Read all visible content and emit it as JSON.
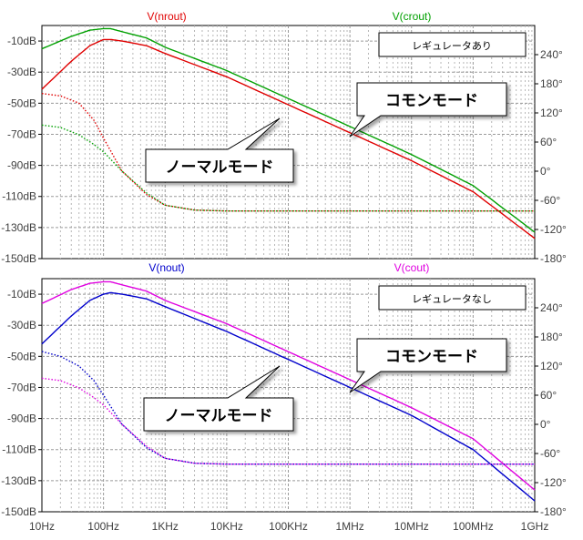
{
  "chart_data": [
    {
      "type": "line",
      "panel": "top",
      "title": "",
      "xlabel": "",
      "ylabel": "",
      "xscale": "log",
      "xlim": [
        10,
        1000000000
      ],
      "x_tick_labels": [
        "10Hz",
        "100Hz",
        "1KHz",
        "10KHz",
        "100KHz",
        "1MHz",
        "10MHz",
        "100MHz",
        "1GHz"
      ],
      "ylim_left": [
        -150,
        0
      ],
      "y_left_tick_values": [
        -10,
        -30,
        -50,
        -70,
        -90,
        -110,
        -130,
        -150
      ],
      "y_left_tick_labels": [
        "-10dB",
        "-30dB",
        "-50dB",
        "-70dB",
        "-90dB",
        "-110dB",
        "-130dB",
        "-150dB"
      ],
      "ylim_right": [
        -180,
        300
      ],
      "y_right_tick_values": [
        240,
        180,
        120,
        60,
        0,
        -60,
        -120,
        -180
      ],
      "y_right_tick_labels": [
        "240°",
        "180°",
        "120°",
        "60°",
        "0°",
        "-60°",
        "-120°",
        "-180°"
      ],
      "legend": [
        "V(nrout)",
        "V(crout)"
      ],
      "box_label": "レギュレータあり",
      "callouts": [
        "コモンモード",
        "ノーマルモード"
      ],
      "series": [
        {
          "name": "V(nrout) magnitude",
          "color": "#e00000",
          "style": "solid",
          "axis": "left",
          "x": [
            10,
            30,
            60,
            100,
            130,
            200,
            500,
            1000,
            10000.0,
            100000.0,
            1000000.0,
            10000000.0,
            100000000.0,
            1000000000.0
          ],
          "y": [
            -41,
            -23,
            -13,
            -9,
            -9,
            -10,
            -13,
            -18,
            -33,
            -51,
            -69,
            -87,
            -107,
            -137
          ]
        },
        {
          "name": "V(crout) magnitude",
          "color": "#00a000",
          "style": "solid",
          "axis": "left",
          "x": [
            10,
            30,
            60,
            100,
            130,
            200,
            500,
            1000,
            10000.0,
            100000.0,
            1000000.0,
            10000000.0,
            100000000.0,
            1000000000.0
          ],
          "y": [
            -15,
            -7,
            -3,
            -2,
            -2,
            -4,
            -8,
            -14,
            -29,
            -47,
            -65,
            -83,
            -103,
            -133
          ]
        },
        {
          "name": "V(nrout) phase",
          "color": "#e00000",
          "style": "dotted",
          "axis": "right",
          "x": [
            10,
            20,
            40,
            70,
            100,
            200,
            500,
            1000,
            3000,
            10000.0,
            100000.0,
            1000000000.0
          ],
          "y": [
            160,
            155,
            140,
            105,
            68,
            0,
            -48,
            -70,
            -80,
            -82,
            -82,
            -82
          ]
        },
        {
          "name": "V(crout) phase",
          "color": "#00a000",
          "style": "dotted",
          "axis": "right",
          "x": [
            10,
            20,
            40,
            70,
            100,
            200,
            500,
            1000,
            3000,
            10000.0,
            100000.0,
            1000000000.0
          ],
          "y": [
            95,
            90,
            75,
            55,
            40,
            0,
            -45,
            -70,
            -80,
            -82,
            -82,
            -82
          ]
        }
      ]
    },
    {
      "type": "line",
      "panel": "bottom",
      "title": "",
      "xlabel": "",
      "ylabel": "",
      "xscale": "log",
      "xlim": [
        10,
        1000000000
      ],
      "x_tick_labels": [
        "10Hz",
        "100Hz",
        "1KHz",
        "10KHz",
        "100KHz",
        "1MHz",
        "10MHz",
        "100MHz",
        "1GHz"
      ],
      "ylim_left": [
        -150,
        0
      ],
      "y_left_tick_values": [
        -10,
        -30,
        -50,
        -70,
        -90,
        -110,
        -130,
        -150
      ],
      "y_left_tick_labels": [
        "-10dB",
        "-30dB",
        "-50dB",
        "-70dB",
        "-90dB",
        "-110dB",
        "-130dB",
        "-150dB"
      ],
      "ylim_right": [
        -180,
        300
      ],
      "y_right_tick_values": [
        240,
        180,
        120,
        60,
        0,
        -60,
        -120,
        -180
      ],
      "y_right_tick_labels": [
        "240°",
        "180°",
        "120°",
        "60°",
        "0°",
        "-60°",
        "-120°",
        "-180°"
      ],
      "legend": [
        "V(nout)",
        "V(cout)"
      ],
      "box_label": "レギュレータなし",
      "callouts": [
        "コモンモード",
        "ノーマルモード"
      ],
      "series": [
        {
          "name": "V(nout) magnitude",
          "color": "#0000cc",
          "style": "solid",
          "axis": "left",
          "x": [
            10,
            30,
            60,
            100,
            130,
            200,
            500,
            1000,
            10000.0,
            100000.0,
            1000000.0,
            10000000.0,
            100000000.0,
            1000000000.0
          ],
          "y": [
            -42,
            -24,
            -14,
            -10,
            -9,
            -10,
            -13,
            -18,
            -34,
            -52,
            -70,
            -88,
            -110,
            -143
          ]
        },
        {
          "name": "V(cout) magnitude",
          "color": "#e000e0",
          "style": "solid",
          "axis": "left",
          "x": [
            10,
            30,
            60,
            100,
            130,
            200,
            500,
            1000,
            10000.0,
            100000.0,
            1000000.0,
            10000000.0,
            100000000.0,
            1000000000.0
          ],
          "y": [
            -16,
            -7,
            -3,
            -2,
            -2,
            -4,
            -8,
            -14,
            -29,
            -47,
            -65,
            -83,
            -103,
            -136
          ]
        },
        {
          "name": "V(nout) phase",
          "color": "#0000cc",
          "style": "dotted",
          "axis": "right",
          "x": [
            10,
            20,
            40,
            70,
            100,
            200,
            500,
            1000,
            3000,
            10000.0,
            100000.0,
            1000000000.0
          ],
          "y": [
            150,
            140,
            120,
            90,
            60,
            0,
            -48,
            -70,
            -80,
            -82,
            -82,
            -82
          ]
        },
        {
          "name": "V(cout) phase",
          "color": "#e000e0",
          "style": "dotted",
          "axis": "right",
          "x": [
            10,
            20,
            40,
            70,
            100,
            200,
            500,
            1000,
            3000,
            10000.0,
            100000.0,
            1000000000.0
          ],
          "y": [
            95,
            90,
            75,
            55,
            40,
            0,
            -45,
            -70,
            -80,
            -82,
            -82,
            -82
          ]
        }
      ]
    }
  ]
}
